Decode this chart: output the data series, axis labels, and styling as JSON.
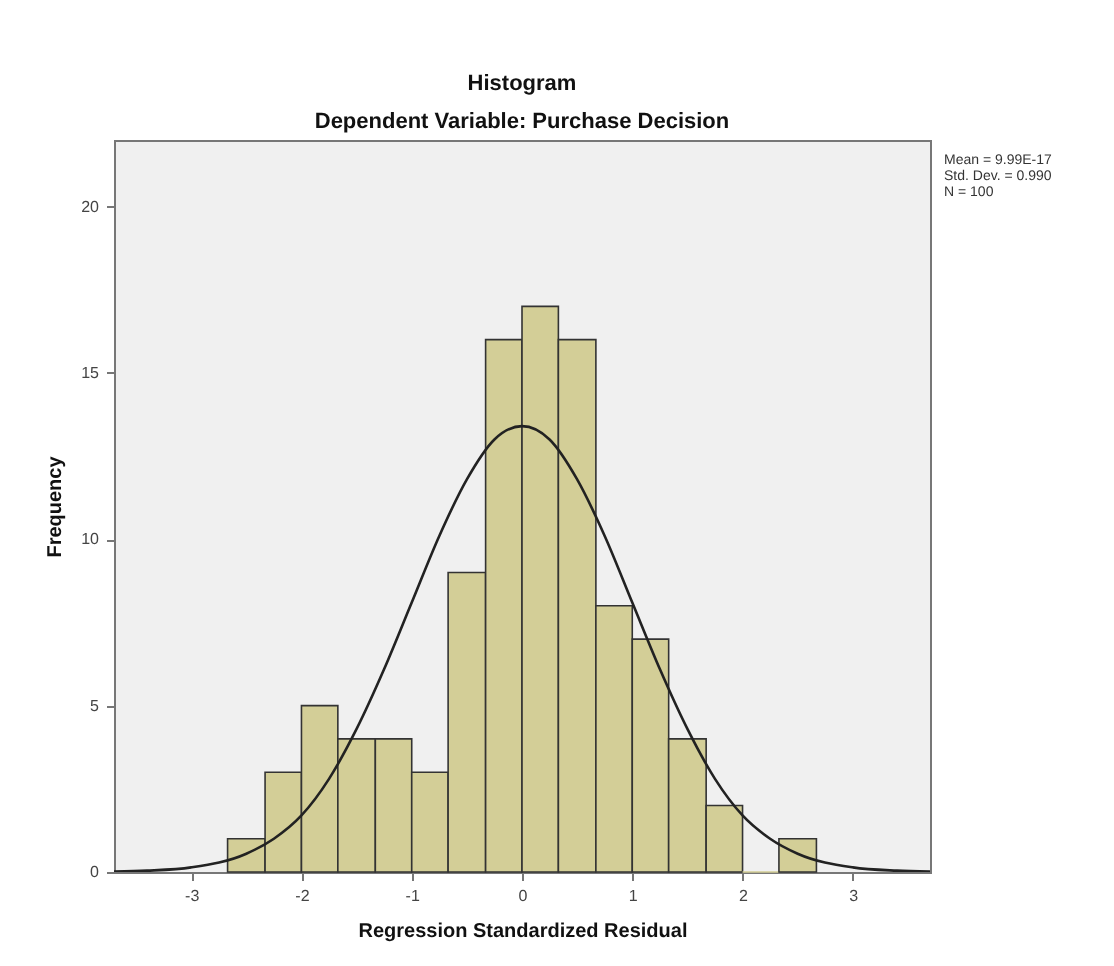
{
  "chart_data": {
    "type": "histogram",
    "title": "Histogram",
    "subtitle": "Dependent Variable: Purchase Decision",
    "xlabel": "Regression Standardized Residual",
    "ylabel": "Frequency",
    "annotations": [
      "Mean = 9.99E-17",
      "Std. Dev. = 0.990",
      "N = 100"
    ],
    "xlim": [
      -3.7,
      3.7
    ],
    "xticks": [
      -3,
      -2,
      -1,
      0,
      1,
      2,
      3
    ],
    "ylim": [
      0,
      22
    ],
    "yticks": [
      0,
      5,
      10,
      15,
      20
    ],
    "series": [
      {
        "color": "#d3ce97",
        "bins": [
          -2.67,
          -2.33,
          -2,
          -1.67,
          -1.33,
          -1,
          -0.67,
          -0.33,
          0,
          0.33,
          0.67,
          1,
          1.33,
          1.67,
          2,
          2.33,
          2.67
        ],
        "values": [
          1,
          3,
          5,
          4,
          4,
          3,
          9,
          16,
          17,
          16,
          8,
          7,
          4,
          2,
          0,
          1
        ]
      },
      {
        "type": "line",
        "color": "#222222",
        "x": [
          -3.7,
          -3.4,
          -3,
          -2.5,
          -2.25,
          -2,
          -1.75,
          -1.5,
          -1.25,
          -1,
          -0.75,
          -0.5,
          -0.25,
          0,
          0.25,
          0.5,
          0.75,
          1,
          1.25,
          1.5,
          1.75,
          2,
          2.25,
          2.5,
          3,
          3.4,
          3.7
        ],
        "values": [
          0.01,
          0.04,
          0.14,
          0.55,
          1.0,
          1.7,
          2.8,
          4.3,
          6.1,
          8.1,
          10.1,
          11.8,
          13.0,
          13.4,
          13.0,
          11.8,
          10.1,
          8.1,
          6.1,
          4.3,
          2.8,
          1.7,
          1.0,
          0.55,
          0.14,
          0.04,
          0.01
        ]
      }
    ]
  }
}
